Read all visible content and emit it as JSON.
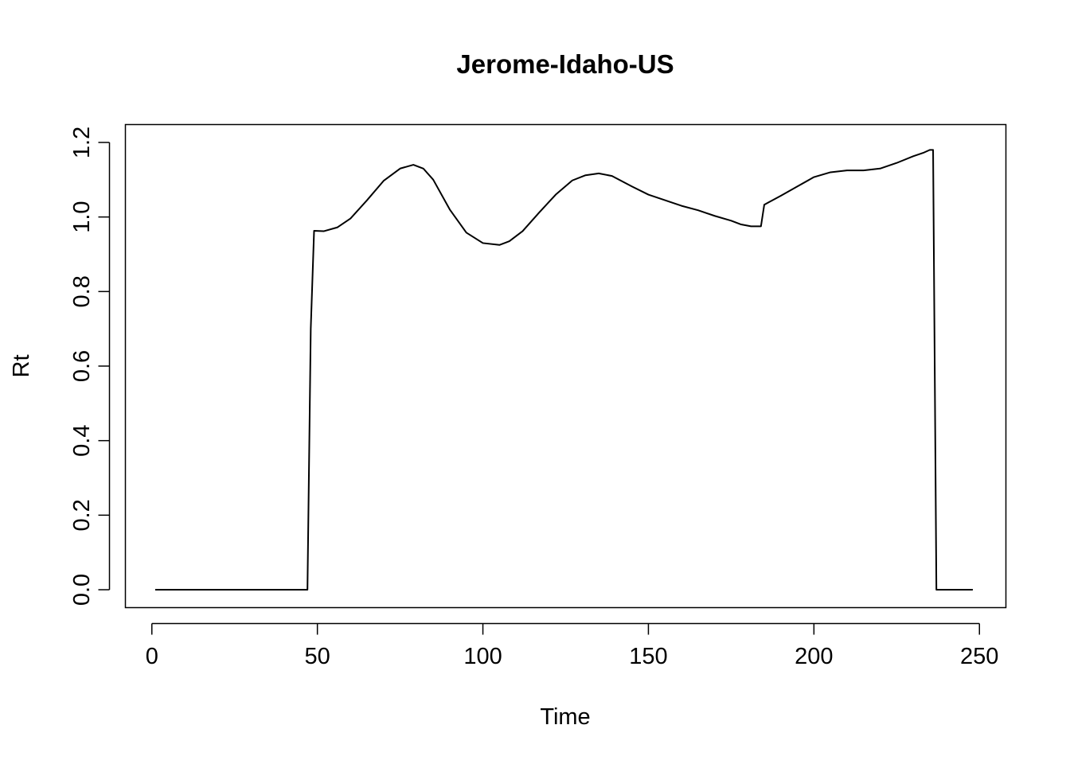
{
  "chart_data": {
    "type": "line",
    "title": "Jerome-Idaho-US",
    "xlabel": "Time",
    "ylabel": "Rt",
    "xlim": [
      -8,
      258
    ],
    "ylim": [
      -0.048,
      1.248
    ],
    "xticks": [
      0,
      50,
      100,
      150,
      200,
      250
    ],
    "yticks": [
      0.0,
      0.2,
      0.4,
      0.6,
      0.8,
      1.0,
      1.2
    ],
    "xtick_labels": [
      "0",
      "50",
      "100",
      "150",
      "200",
      "250"
    ],
    "ytick_labels": [
      "0.0",
      "0.2",
      "0.4",
      "0.6",
      "0.8",
      "1.0",
      "1.2"
    ],
    "grid": false,
    "legend": "none",
    "line_color": "#000000",
    "series": [
      {
        "x": [
          1,
          47,
          48,
          49,
          52,
          56,
          60,
          65,
          70,
          75,
          79,
          82,
          85,
          90,
          95,
          100,
          105,
          108,
          112,
          117,
          122,
          127,
          131,
          135,
          139,
          145,
          150,
          155,
          160,
          165,
          170,
          175,
          178,
          181,
          183,
          184,
          185,
          190,
          195,
          200,
          205,
          210,
          215,
          220,
          225,
          230,
          233,
          235,
          236,
          237,
          248
        ],
        "y": [
          0,
          0,
          0.7,
          0.963,
          0.962,
          0.972,
          0.996,
          1.045,
          1.097,
          1.13,
          1.14,
          1.13,
          1.1,
          1.02,
          0.958,
          0.93,
          0.925,
          0.935,
          0.962,
          1.012,
          1.06,
          1.098,
          1.112,
          1.117,
          1.11,
          1.082,
          1.06,
          1.045,
          1.03,
          1.018,
          1.003,
          0.99,
          0.98,
          0.975,
          0.975,
          0.975,
          1.033,
          1.057,
          1.082,
          1.107,
          1.12,
          1.125,
          1.125,
          1.13,
          1.145,
          1.163,
          1.172,
          1.18,
          1.18,
          0,
          0
        ]
      }
    ]
  }
}
